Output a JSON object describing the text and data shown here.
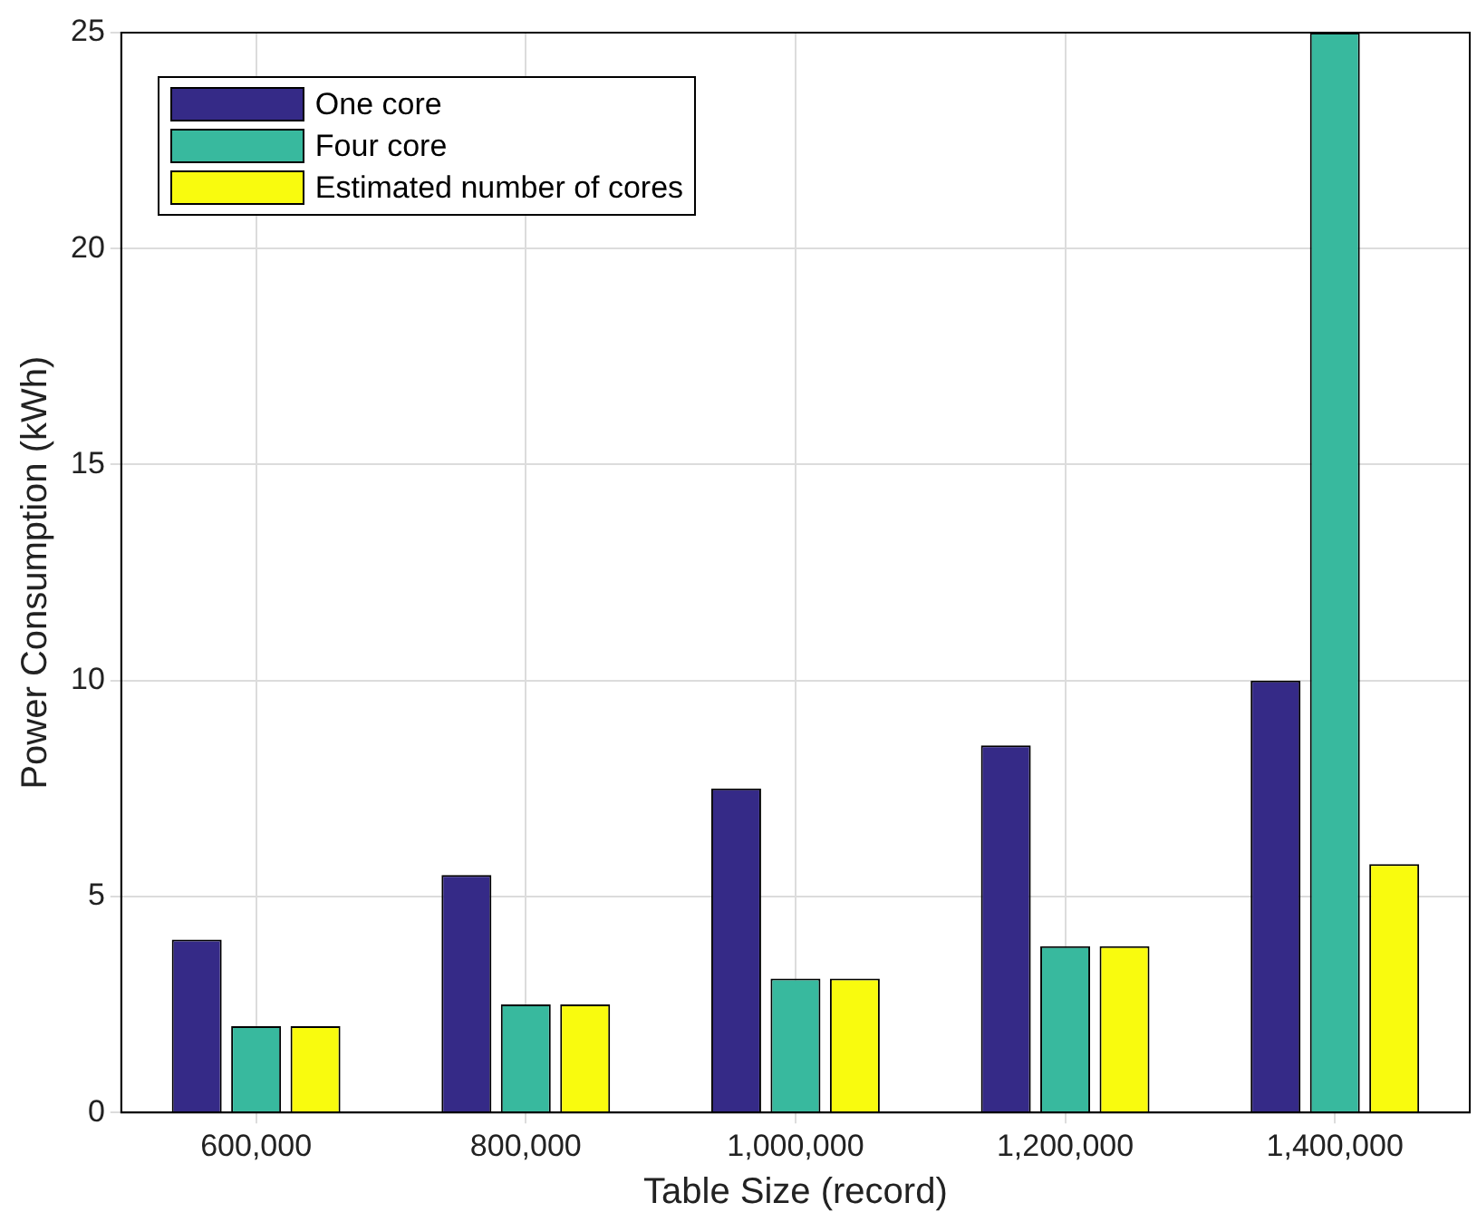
{
  "chart_data": {
    "type": "bar",
    "xlabel": "Table Size (record)",
    "ylabel": "Power Consumption (kWh)",
    "categories": [
      "600,000",
      "800,000",
      "1,000,000",
      "1,200,000",
      "1,400,000"
    ],
    "series": [
      {
        "name": "One core",
        "color": "#352a87",
        "values": [
          4,
          5.5,
          7.5,
          8.5,
          10
        ]
      },
      {
        "name": "Four core",
        "color": "#38b99e",
        "values": [
          2,
          2.5,
          3.1,
          3.85,
          25
        ]
      },
      {
        "name": "Estimated number of cores",
        "color": "#f9fb0e",
        "values": [
          2,
          2.5,
          3.1,
          3.85,
          5.75
        ]
      }
    ],
    "ylim": [
      0,
      25
    ],
    "yticks": [
      0,
      5,
      10,
      15,
      20,
      25
    ],
    "grid": true,
    "legend": "top left"
  }
}
